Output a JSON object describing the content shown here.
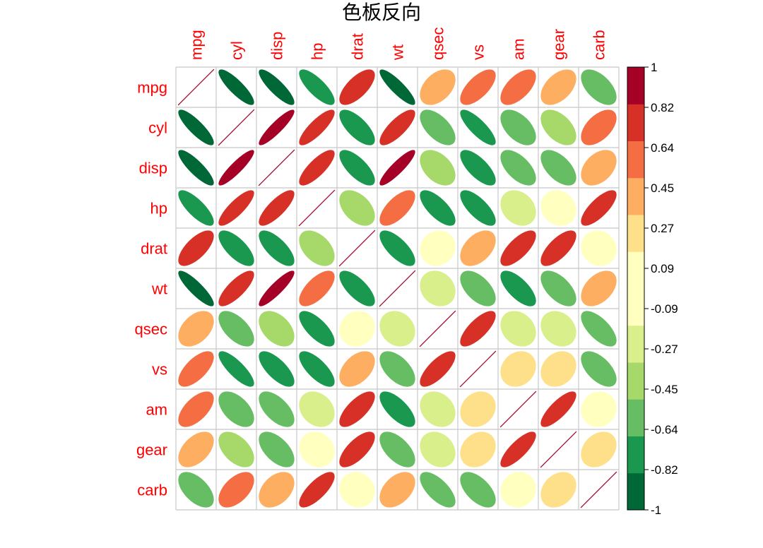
{
  "chart_data": {
    "type": "heatmap",
    "title": "色板反向",
    "variables": [
      "mpg",
      "cyl",
      "disp",
      "hp",
      "drat",
      "wt",
      "qsec",
      "vs",
      "am",
      "gear",
      "carb"
    ],
    "matrix": [
      [
        1.0,
        -0.85,
        -0.85,
        -0.78,
        0.68,
        -0.87,
        0.42,
        0.66,
        0.6,
        0.48,
        -0.55
      ],
      [
        -0.85,
        1.0,
        0.9,
        0.83,
        -0.7,
        0.78,
        -0.59,
        -0.81,
        -0.52,
        -0.49,
        0.53
      ],
      [
        -0.85,
        0.9,
        1.0,
        0.79,
        -0.71,
        0.89,
        -0.43,
        -0.71,
        -0.59,
        -0.56,
        0.39
      ],
      [
        -0.78,
        0.83,
        0.79,
        1.0,
        -0.45,
        0.66,
        -0.71,
        -0.72,
        -0.24,
        -0.13,
        0.75
      ],
      [
        0.68,
        -0.7,
        -0.71,
        -0.45,
        1.0,
        -0.71,
        0.09,
        0.44,
        0.71,
        0.7,
        -0.09
      ],
      [
        -0.87,
        0.78,
        0.89,
        0.66,
        -0.71,
        1.0,
        -0.17,
        -0.55,
        -0.69,
        -0.58,
        0.43
      ],
      [
        0.42,
        -0.59,
        -0.43,
        -0.71,
        0.09,
        -0.17,
        1.0,
        0.74,
        -0.23,
        -0.21,
        -0.66
      ],
      [
        0.66,
        -0.81,
        -0.71,
        -0.72,
        0.44,
        -0.55,
        0.74,
        1.0,
        0.17,
        0.21,
        -0.57
      ],
      [
        0.6,
        -0.52,
        -0.59,
        -0.24,
        0.71,
        -0.69,
        -0.23,
        0.17,
        1.0,
        0.79,
        0.06
      ],
      [
        0.48,
        -0.49,
        -0.56,
        -0.13,
        0.7,
        -0.58,
        -0.21,
        0.21,
        0.79,
        1.0,
        0.27
      ],
      [
        -0.55,
        0.53,
        0.39,
        0.75,
        -0.09,
        0.43,
        -0.66,
        -0.57,
        0.06,
        0.27,
        1.0
      ]
    ],
    "color_scale": {
      "min": -1,
      "max": 1,
      "tick_labels": [
        "1",
        "0.82",
        "0.64",
        "0.45",
        "0.27",
        "0.09",
        "-0.09",
        "-0.27",
        "-0.45",
        "-0.64",
        "-0.82",
        "-1"
      ],
      "bins_low_to_high": [
        "#006837",
        "#1a9850",
        "#66bd63",
        "#a6d96a",
        "#d9ef8b",
        "#ffffbf",
        "#ffffbf",
        "#fee08b",
        "#fdae61",
        "#f46d43",
        "#d73027",
        "#a50026"
      ]
    },
    "label_color": "#ff0000",
    "grid_color": "#c8c8c8",
    "legend_position": "right"
  }
}
